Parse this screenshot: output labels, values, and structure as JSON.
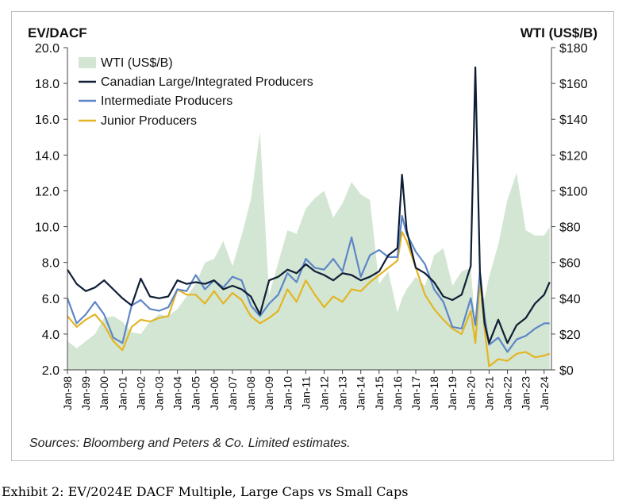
{
  "caption": "Exhibit 2: EV/2024E DACF Multiple, Large Caps vs Small Caps",
  "chart_data": {
    "type": "line",
    "title": "",
    "ylabel": "EV/DACF",
    "y2label": "WTI (US$/B)",
    "ylim": [
      2.0,
      20.0
    ],
    "y2lim": [
      0,
      180
    ],
    "yticks": [
      "2.0",
      "4.0",
      "6.0",
      "8.0",
      "10.0",
      "12.0",
      "14.0",
      "16.0",
      "18.0",
      "20.0"
    ],
    "y2ticks": [
      "$0",
      "$20",
      "$40",
      "$60",
      "$80",
      "$100",
      "$120",
      "$140",
      "$160",
      "$180"
    ],
    "xticks": [
      "Jan-98",
      "Jan-99",
      "Jan-00",
      "Jan-01",
      "Jan-02",
      "Jan-03",
      "Jan-04",
      "Jan-05",
      "Jan-06",
      "Jan-07",
      "Jan-08",
      "Jan-09",
      "Jan-10",
      "Jan-11",
      "Jan-12",
      "Jan-13",
      "Jan-14",
      "Jan-15",
      "Jan-16",
      "Jan-17",
      "Jan-18",
      "Jan-19",
      "Jan-20",
      "Jan-21",
      "Jan-22",
      "Jan-23",
      "Jan-24"
    ],
    "legend_position": "top-left",
    "source": "Sources: Bloomberg and Peters & Co. Limited estimates.",
    "x": [
      1998,
      1998.5,
      1999,
      1999.5,
      2000,
      2000.5,
      2001,
      2001.5,
      2002,
      2002.5,
      2003,
      2003.5,
      2004,
      2004.5,
      2005,
      2005.5,
      2006,
      2006.5,
      2007,
      2007.5,
      2008,
      2008.5,
      2009,
      2009.5,
      2010,
      2010.5,
      2011,
      2011.5,
      2012,
      2012.5,
      2013,
      2013.5,
      2014,
      2014.5,
      2015,
      2015.5,
      2016,
      2016.25,
      2016.5,
      2017,
      2017.5,
      2018,
      2018.5,
      2019,
      2019.5,
      2020,
      2020.25,
      2020.5,
      2020.75,
      2021,
      2021.5,
      2022,
      2022.5,
      2023,
      2023.5,
      2024,
      2024.3
    ],
    "area_series": {
      "name": "WTI (US$/B)",
      "axis": "right",
      "color": "#d3e6d3",
      "values": [
        16,
        12,
        16,
        20,
        29,
        30,
        27,
        21,
        20,
        27,
        31,
        30,
        34,
        41,
        48,
        60,
        62,
        72,
        58,
        75,
        95,
        133,
        42,
        60,
        78,
        76,
        90,
        96,
        100,
        85,
        93,
        105,
        98,
        95,
        48,
        55,
        32,
        40,
        45,
        52,
        47,
        64,
        68,
        47,
        55,
        57,
        25,
        40,
        40,
        52,
        70,
        95,
        110,
        78,
        75,
        75,
        80
      ]
    },
    "series": [
      {
        "name": "Canadian Large/Integrated Producers",
        "color": "#0f1e36",
        "values": [
          7.6,
          6.8,
          6.4,
          6.6,
          7.0,
          6.5,
          6.0,
          5.6,
          7.1,
          6.1,
          6.0,
          6.1,
          7.0,
          6.8,
          6.9,
          6.8,
          7.0,
          6.5,
          6.7,
          6.5,
          6.1,
          5.1,
          7.0,
          7.2,
          7.6,
          7.4,
          7.9,
          7.5,
          7.3,
          7.0,
          7.4,
          7.3,
          7.0,
          7.2,
          7.5,
          8.4,
          8.8,
          12.9,
          9.8,
          7.7,
          7.4,
          6.9,
          6.1,
          5.9,
          6.2,
          7.8,
          18.9,
          7.4,
          4.6,
          3.5,
          4.8,
          3.5,
          4.5,
          4.9,
          5.7,
          6.2,
          6.9
        ]
      },
      {
        "name": "Intermediate Producers",
        "color": "#5e86c7",
        "values": [
          6.0,
          4.6,
          5.1,
          5.8,
          5.1,
          3.8,
          3.5,
          5.6,
          5.9,
          5.4,
          5.3,
          5.5,
          6.5,
          6.4,
          7.3,
          6.5,
          7.0,
          6.6,
          7.2,
          7.0,
          5.6,
          5.0,
          5.7,
          6.2,
          7.4,
          6.9,
          8.2,
          7.7,
          7.6,
          8.2,
          7.5,
          9.4,
          7.2,
          8.4,
          8.7,
          8.3,
          8.3,
          10.6,
          9.6,
          8.6,
          7.9,
          6.5,
          5.8,
          4.4,
          4.3,
          6.0,
          4.5,
          7.5,
          5.0,
          3.4,
          3.8,
          3.0,
          3.7,
          3.9,
          4.3,
          4.6,
          4.6
        ]
      },
      {
        "name": "Junior Producers",
        "color": "#e3b524",
        "values": [
          5.0,
          4.4,
          4.8,
          5.1,
          4.5,
          3.6,
          3.1,
          4.4,
          4.8,
          4.7,
          4.9,
          5.0,
          6.5,
          6.2,
          6.2,
          5.7,
          6.4,
          5.7,
          6.3,
          5.9,
          5.0,
          4.6,
          4.9,
          5.3,
          6.5,
          5.8,
          7.0,
          6.2,
          5.5,
          6.1,
          5.8,
          6.5,
          6.4,
          6.9,
          7.3,
          7.7,
          8.1,
          9.7,
          9.2,
          7.7,
          6.2,
          5.4,
          4.8,
          4.3,
          4.0,
          5.3,
          3.5,
          6.9,
          4.3,
          2.2,
          2.6,
          2.5,
          2.9,
          3.0,
          2.7,
          2.8,
          2.9
        ]
      }
    ]
  }
}
